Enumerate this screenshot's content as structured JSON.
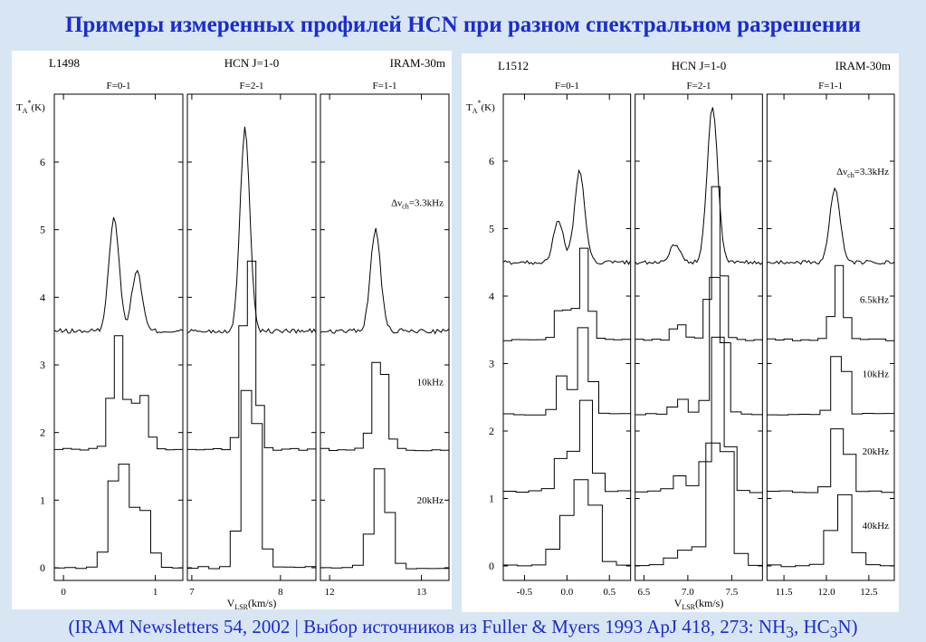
{
  "page": {
    "title": "Примеры измеренных профилей HCN при разном спектральном разрешении",
    "footer_main": "(IRAM Newsletters 54, 2002 | Выбор источников из Fuller & Myers 1993 ApJ 418, 273: NH",
    "footer_sub1": "3",
    "footer_mid": ", HC",
    "footer_sub2": "3",
    "footer_end": "N)"
  },
  "chart_data": [
    {
      "type": "line",
      "source": "L1498",
      "transition": "HCN J=1-0",
      "telescope": "IRAM-30m",
      "ylabel_main": "T",
      "ylabel_sub": "A",
      "ylabel_sup": "*",
      "ylabel_unit": "(K)",
      "xlabel_main": "V",
      "xlabel_sub": "LSR",
      "xlabel_unit": "(km/s)",
      "ylim": [
        -0.3,
        7.0
      ],
      "yticks": [
        0,
        1,
        2,
        3,
        4,
        5,
        6
      ],
      "subpanels": [
        {
          "label": "F=0-1",
          "xlim": [
            -0.1,
            1.3
          ],
          "xticks": [
            0,
            1
          ],
          "peaks": [
            [
              0.55,
              1.7
            ],
            [
              0.8,
              0.9
            ]
          ]
        },
        {
          "label": "F=2-1",
          "xlim": [
            6.95,
            8.4
          ],
          "xticks": [
            7,
            8
          ],
          "peaks": [
            [
              7.6,
              3.0
            ]
          ]
        },
        {
          "label": "F=1-1",
          "xlim": [
            11.9,
            13.3
          ],
          "xticks": [
            12,
            13
          ],
          "peaks": [
            [
              12.5,
              1.5
            ]
          ]
        }
      ],
      "series": [
        {
          "name": "Δν_ch=3.3kHz",
          "name_main": "Δν",
          "name_sub": "ch",
          "name_rest": "=3.3kHz",
          "baseline": 3.5,
          "width": 0.055,
          "step": false
        },
        {
          "name": "10kHz",
          "name_main": "10kHz",
          "baseline": 1.75,
          "width": 0.07,
          "step": true
        },
        {
          "name": "20kHz",
          "name_main": "20kHz",
          "baseline": 0.0,
          "width": 0.09,
          "step": true
        }
      ]
    },
    {
      "type": "line",
      "source": "L1512",
      "transition": "HCN J=1-0",
      "telescope": "IRAM-30m",
      "ylabel_main": "T",
      "ylabel_sub": "A",
      "ylabel_sup": "*",
      "ylabel_unit": "(K)",
      "xlabel_main": "V",
      "xlabel_sub": "LSR",
      "xlabel_unit": "(km/s)",
      "ylim": [
        -0.3,
        7.0
      ],
      "yticks": [
        0,
        1,
        2,
        3,
        4,
        5,
        6
      ],
      "subpanels": [
        {
          "label": "F=0-1",
          "xlim": [
            -0.75,
            0.75
          ],
          "xticks": [
            -0.5,
            0.0,
            0.5
          ],
          "tick_labels": [
            "-0.5",
            "0.0",
            "0.5"
          ],
          "peaks": [
            [
              -0.1,
              0.6
            ],
            [
              0.15,
              1.35
            ]
          ]
        },
        {
          "label": "F=2-1",
          "xlim": [
            6.4,
            7.85
          ],
          "xticks": [
            6.5,
            7.0,
            7.5
          ],
          "tick_labels": [
            "6.5",
            "7.0",
            "7.5"
          ],
          "peaks": [
            [
              6.85,
              0.25
            ],
            [
              7.28,
              2.3
            ]
          ]
        },
        {
          "label": "F=1-1",
          "xlim": [
            11.3,
            12.8
          ],
          "xticks": [
            11.5,
            12.0,
            12.5
          ],
          "tick_labels": [
            "11.5",
            "12.0",
            "12.5"
          ],
          "peaks": [
            [
              12.1,
              1.1
            ]
          ]
        }
      ],
      "series": [
        {
          "name": "Δν_ch=3.3kHz",
          "name_main": "Δν",
          "name_sub": "ch",
          "name_rest": "=3.3kHz",
          "baseline": 4.5,
          "width": 0.06,
          "step": false
        },
        {
          "name": "6.5kHz",
          "name_main": "6.5kHz",
          "baseline": 3.35,
          "width": 0.065,
          "step": true
        },
        {
          "name": "10kHz",
          "name_main": "10kHz",
          "baseline": 2.25,
          "width": 0.07,
          "step": true
        },
        {
          "name": "20kHz",
          "name_main": "20kHz",
          "baseline": 1.1,
          "width": 0.085,
          "step": true
        },
        {
          "name": "40kHz",
          "name_main": "40kHz",
          "baseline": 0.0,
          "width": 0.11,
          "step": true
        }
      ]
    }
  ]
}
